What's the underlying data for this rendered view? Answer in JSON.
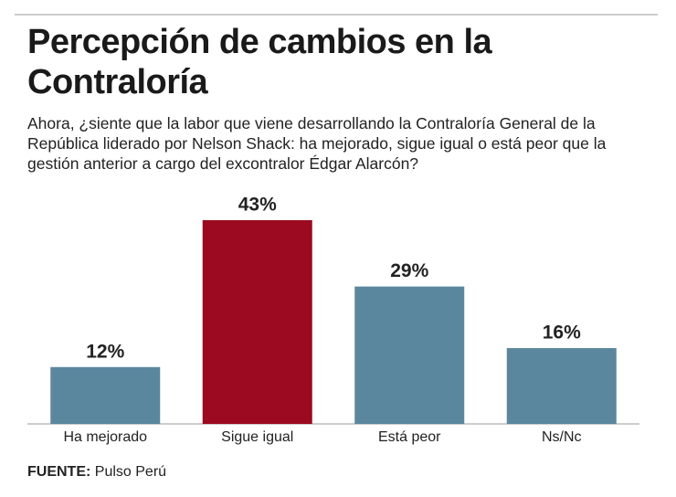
{
  "chart_data": {
    "type": "bar",
    "title": "Percepción de cambios en la Contraloría",
    "subtitle": "Ahora, ¿siente que la labor que viene desarrollando la Contraloría General de la República liderado por Nelson Shack: ha mejorado, sigue igual o está peor que la gestión anterior a cargo del excontralor Édgar Alarcón?",
    "categories": [
      "Ha mejorado",
      "Sigue igual",
      "Está peor",
      "Ns/Nc"
    ],
    "values": [
      12,
      43,
      29,
      16
    ],
    "value_labels": [
      "12%",
      "43%",
      "29%",
      "16%"
    ],
    "colors": [
      "#5b879e",
      "#9b0a20",
      "#5b879e",
      "#5b879e"
    ],
    "source_label": "FUENTE:",
    "source": "Pulso Perú"
  }
}
